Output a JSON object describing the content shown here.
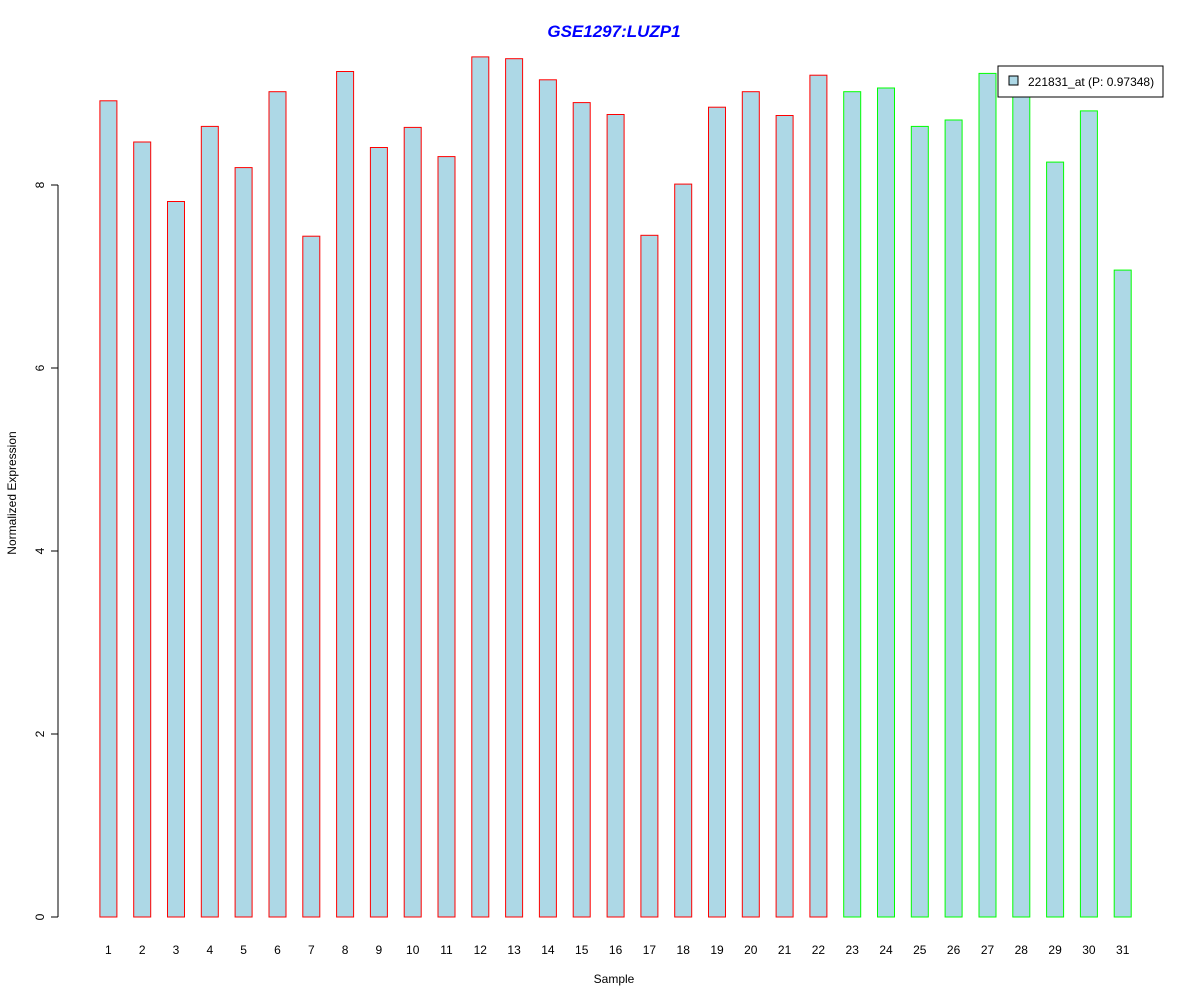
{
  "colors": {
    "bar_fill": "#add8e6",
    "group1_border": "#ff0000",
    "group2_border": "#00ff00",
    "title": "#0000ff",
    "axis": "#000000"
  },
  "chart_data": {
    "type": "bar",
    "title": "GSE1297:LUZP1",
    "xlabel": "Sample",
    "ylabel": "Normalized Expression",
    "ylim": [
      0,
      9.4
    ],
    "yticks": [
      0,
      2,
      4,
      6,
      8
    ],
    "categories": [
      "1",
      "2",
      "3",
      "4",
      "5",
      "6",
      "7",
      "8",
      "9",
      "10",
      "11",
      "12",
      "13",
      "14",
      "15",
      "16",
      "17",
      "18",
      "19",
      "20",
      "21",
      "22",
      "23",
      "24",
      "25",
      "26",
      "27",
      "28",
      "29",
      "30",
      "31"
    ],
    "values": [
      8.92,
      8.47,
      7.82,
      8.64,
      8.19,
      9.02,
      7.44,
      9.24,
      8.41,
      8.63,
      8.31,
      9.4,
      9.38,
      9.15,
      8.9,
      8.77,
      7.45,
      8.01,
      8.85,
      9.02,
      8.76,
      9.2,
      9.02,
      9.06,
      8.64,
      8.71,
      9.22,
      9.02,
      8.25,
      8.81,
      7.07
    ],
    "groups": [
      1,
      1,
      1,
      1,
      1,
      1,
      1,
      1,
      1,
      1,
      1,
      1,
      1,
      1,
      1,
      1,
      1,
      1,
      1,
      1,
      1,
      1,
      2,
      2,
      2,
      2,
      2,
      2,
      2,
      2,
      2
    ],
    "legend": {
      "label": "221831_at (P: 0.97348)",
      "position": "top-right"
    },
    "grid": false
  }
}
